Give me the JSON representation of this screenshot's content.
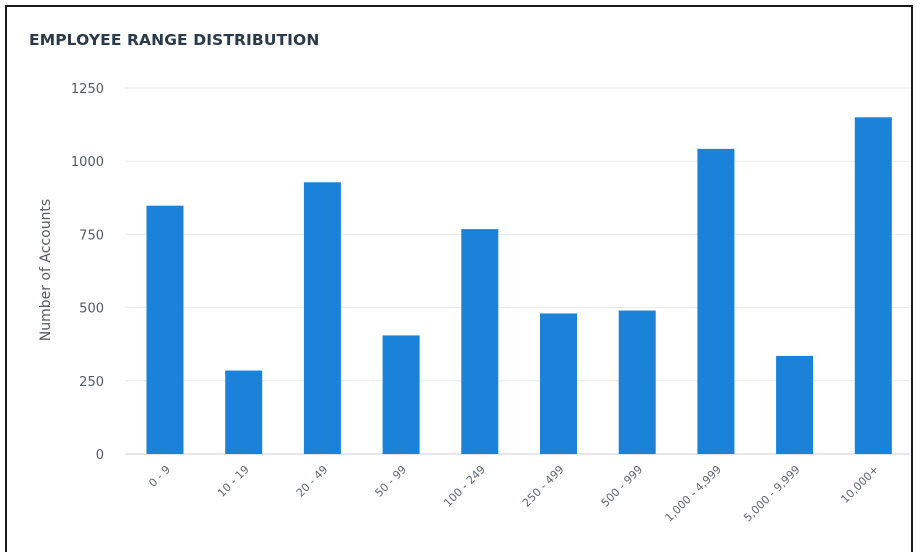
{
  "chart_data": {
    "type": "bar",
    "title": "EMPLOYEE RANGE DISTRIBUTION",
    "xlabel": "",
    "ylabel": "Number of Accounts",
    "categories": [
      "0 - 9",
      "10 - 19",
      "20 - 49",
      "50 - 99",
      "100 - 249",
      "250 - 499",
      "500 - 999",
      "1,000 - 4,999",
      "5,000 - 9,999",
      "10,000+"
    ],
    "values": [
      848,
      285,
      928,
      405,
      768,
      480,
      490,
      1042,
      335,
      1150
    ],
    "ylim": [
      0,
      1250
    ],
    "yticks": [
      0,
      250,
      500,
      750,
      1000,
      1250
    ],
    "grid": true,
    "legend": "none",
    "bar_color": "#1a82d8",
    "grid_color": "#e6e9ec"
  }
}
